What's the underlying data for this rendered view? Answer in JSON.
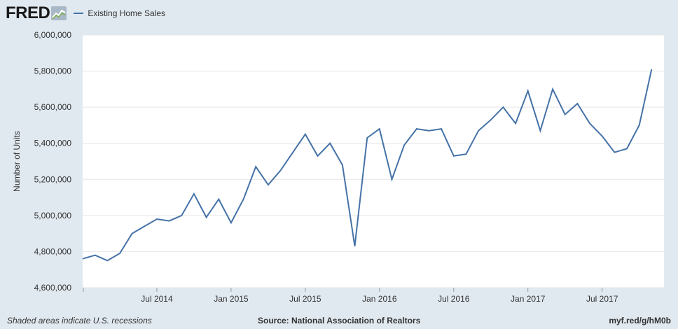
{
  "brand": {
    "name": "FRED"
  },
  "colors": {
    "series": "#4572a7",
    "plot_bg": "#ffffff",
    "page_bg": "#e1e9f0",
    "grid": "#e6e6e6"
  },
  "footer": {
    "note": "Shaded areas indicate U.S. recessions",
    "source": "Source: National Association of Realtors",
    "link": "myf.red/g/hM0b"
  },
  "chart_data": {
    "type": "line",
    "title": "",
    "ylabel": "Number of Units",
    "xlabel": "",
    "ylim": [
      4600000,
      6000000
    ],
    "ytick_values": [
      4600000,
      4800000,
      5000000,
      5200000,
      5400000,
      5600000,
      5800000,
      6000000
    ],
    "ytick_labels": [
      "4,600,000",
      "4,800,000",
      "5,000,000",
      "5,200,000",
      "5,400,000",
      "5,600,000",
      "5,800,000",
      "6,000,000"
    ],
    "xtick_labels": [
      "Jul 2014",
      "Jan 2015",
      "Jul 2015",
      "Jan 2016",
      "Jul 2016",
      "Jan 2017",
      "Jul 2017"
    ],
    "xtick_dates": [
      "2014-07",
      "2015-01",
      "2015-07",
      "2016-01",
      "2016-07",
      "2017-01",
      "2017-07"
    ],
    "x_start": "2014-01",
    "x_end": "2017-12",
    "grid": true,
    "legend": "top-left",
    "series": [
      {
        "name": "Existing Home Sales",
        "x": [
          "2014-01",
          "2014-02",
          "2014-03",
          "2014-04",
          "2014-05",
          "2014-06",
          "2014-07",
          "2014-08",
          "2014-09",
          "2014-10",
          "2014-11",
          "2014-12",
          "2015-01",
          "2015-02",
          "2015-03",
          "2015-04",
          "2015-05",
          "2015-06",
          "2015-07",
          "2015-08",
          "2015-09",
          "2015-10",
          "2015-11",
          "2015-12",
          "2016-01",
          "2016-02",
          "2016-03",
          "2016-04",
          "2016-05",
          "2016-06",
          "2016-07",
          "2016-08",
          "2016-09",
          "2016-10",
          "2016-11",
          "2016-12",
          "2017-01",
          "2017-02",
          "2017-03",
          "2017-04",
          "2017-05",
          "2017-06",
          "2017-07",
          "2017-08",
          "2017-09",
          "2017-10",
          "2017-11"
        ],
        "values": [
          4760000,
          4780000,
          4750000,
          4790000,
          4900000,
          4940000,
          4980000,
          4970000,
          5000000,
          5120000,
          4990000,
          5090000,
          4960000,
          5090000,
          5270000,
          5170000,
          5250000,
          5350000,
          5450000,
          5330000,
          5400000,
          5280000,
          4830000,
          5430000,
          5480000,
          5200000,
          5390000,
          5480000,
          5470000,
          5480000,
          5330000,
          5340000,
          5470000,
          5530000,
          5600000,
          5510000,
          5690000,
          5470000,
          5700000,
          5560000,
          5620000,
          5510000,
          5440000,
          5350000,
          5370000,
          5500000,
          5810000
        ]
      }
    ]
  }
}
